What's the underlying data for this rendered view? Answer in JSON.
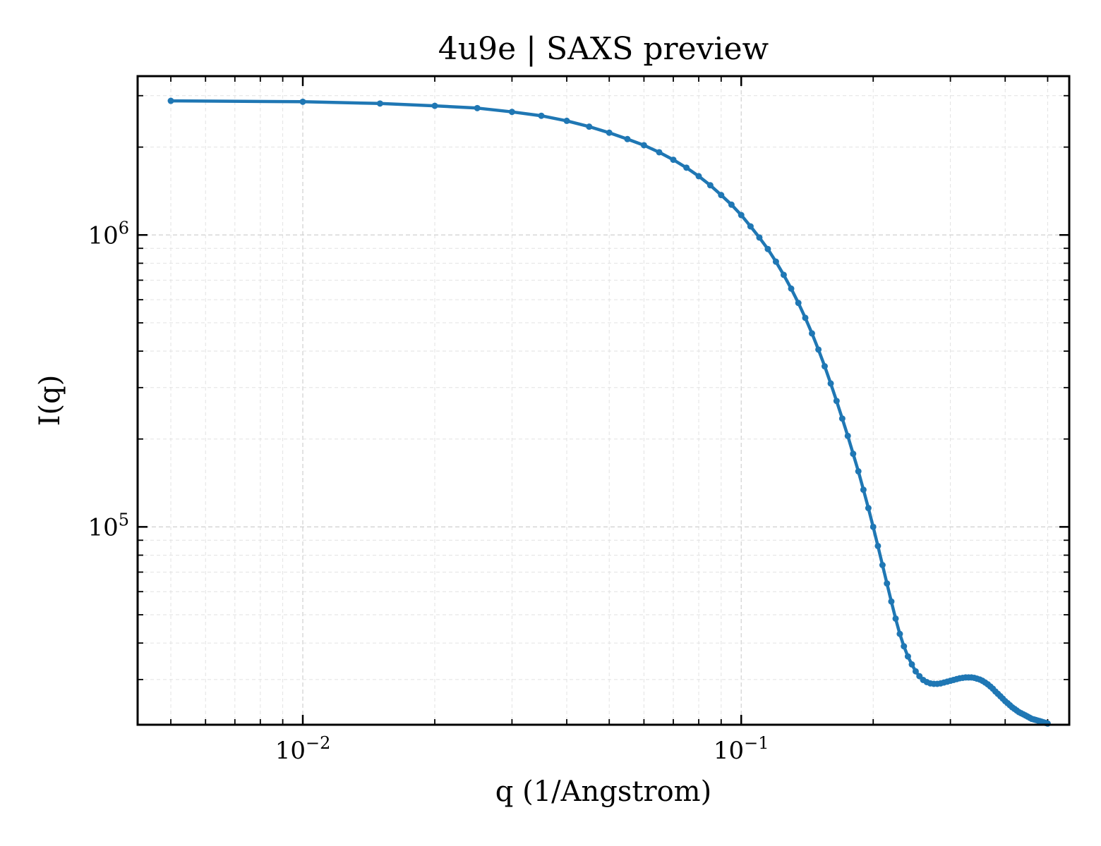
{
  "chart_data": {
    "type": "line",
    "title": "4u9e | SAXS preview",
    "xlabel": "q (1/Angstrom)",
    "ylabel": "I(q)",
    "x_scale": "log",
    "y_scale": "log",
    "xlim": [
      0.0042,
      0.56
    ],
    "ylim": [
      21000,
      3500000
    ],
    "grid": true,
    "legend": "none",
    "ticks_inside": true,
    "x_ticks": [
      {
        "value": 0.01,
        "base": "10",
        "exp": "−2"
      },
      {
        "value": 0.1,
        "base": "10",
        "exp": "−1"
      }
    ],
    "y_ticks": [
      {
        "value": 100000,
        "base": "10",
        "exp": "5"
      },
      {
        "value": 1000000,
        "base": "10",
        "exp": "6"
      }
    ],
    "colors": {
      "series": "#1f77b4"
    },
    "series": [
      {
        "x": [
          0.005,
          0.01,
          0.015,
          0.02,
          0.025,
          0.03,
          0.035,
          0.04,
          0.045,
          0.05,
          0.055,
          0.06,
          0.065,
          0.07,
          0.075,
          0.08,
          0.085,
          0.09,
          0.095,
          0.1,
          0.105,
          0.11,
          0.115,
          0.12,
          0.125,
          0.13,
          0.135,
          0.14,
          0.145,
          0.15,
          0.155,
          0.16,
          0.165,
          0.17,
          0.175,
          0.18,
          0.185,
          0.19,
          0.195,
          0.2,
          0.205,
          0.21,
          0.215,
          0.22,
          0.225,
          0.23,
          0.235,
          0.24,
          0.245,
          0.25,
          0.255,
          0.26,
          0.265,
          0.27,
          0.275,
          0.28,
          0.285,
          0.29,
          0.295,
          0.3,
          0.305,
          0.31,
          0.315,
          0.32,
          0.325,
          0.33,
          0.335,
          0.34,
          0.345,
          0.35,
          0.355,
          0.36,
          0.365,
          0.37,
          0.375,
          0.38,
          0.385,
          0.39,
          0.395,
          0.4,
          0.405,
          0.41,
          0.415,
          0.42,
          0.425,
          0.43,
          0.435,
          0.44,
          0.445,
          0.45,
          0.455,
          0.46,
          0.465,
          0.47,
          0.475,
          0.48,
          0.485,
          0.49,
          0.495,
          0.5
        ],
        "y": [
          2880000,
          2860000,
          2820000,
          2770000,
          2720000,
          2640000,
          2560000,
          2460000,
          2350000,
          2240000,
          2130000,
          2030000,
          1920000,
          1810000,
          1700000,
          1590000,
          1480000,
          1370000,
          1270000,
          1170000,
          1070000,
          980000,
          895000,
          810000,
          730000,
          655000,
          585000,
          520000,
          460000,
          405000,
          355000,
          310000,
          270000,
          235000,
          205000,
          178000,
          155000,
          134000,
          116000,
          100000,
          86000,
          74000,
          64000,
          55500,
          48500,
          43000,
          39000,
          36000,
          33800,
          32000,
          30800,
          29900,
          29400,
          29100,
          29000,
          29000,
          29100,
          29300,
          29500,
          29700,
          29900,
          30100,
          30300,
          30400,
          30500,
          30500,
          30500,
          30400,
          30200,
          30000,
          29700,
          29300,
          28900,
          28400,
          27900,
          27300,
          26800,
          26300,
          25800,
          25300,
          24900,
          24500,
          24100,
          23800,
          23500,
          23200,
          23000,
          22800,
          22600,
          22400,
          22200,
          22000,
          21900,
          21800,
          21700,
          21600,
          21500,
          21400,
          21300,
          21200
        ]
      }
    ]
  }
}
